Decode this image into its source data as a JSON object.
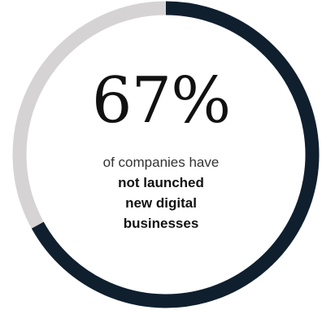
{
  "chart_data": {
    "type": "pie",
    "style": "donut",
    "slices": [
      {
        "label": "not launched",
        "value": 67,
        "color": "#0f1f2e"
      },
      {
        "label": "launched",
        "value": 33,
        "color": "#d5d3d4"
      }
    ],
    "start_angle_deg": 0,
    "direction": "clockwise",
    "center_label": "67%",
    "caption_lines": [
      {
        "text": "of companies have",
        "bold": false
      },
      {
        "text": "not launched",
        "bold": true
      },
      {
        "text": "new digital",
        "bold": true
      },
      {
        "text": "businesses",
        "bold": true
      }
    ]
  }
}
